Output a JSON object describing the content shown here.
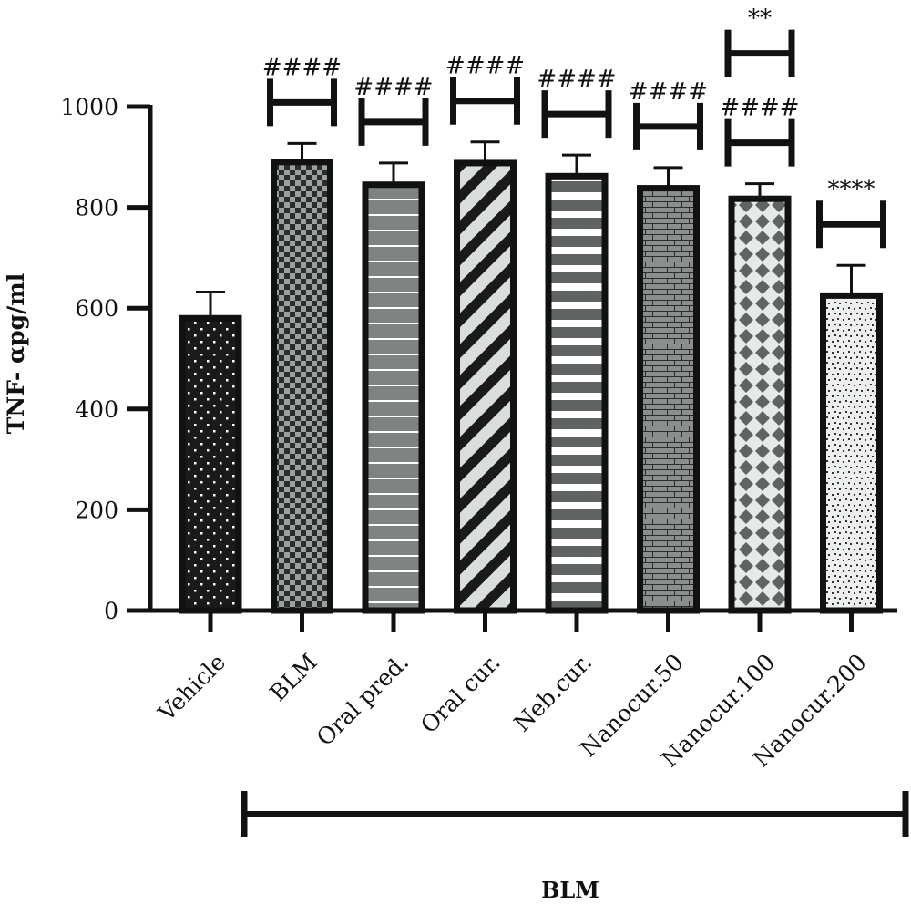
{
  "chart_data": {
    "type": "bar",
    "title": "",
    "xlabel": "",
    "ylabel": "TNF- αpg/ml",
    "ylim": [
      0,
      1000
    ],
    "yticks": [
      "0",
      "200",
      "400",
      "600",
      "800",
      "1000"
    ],
    "grid": false,
    "categories": [
      "Vehicle",
      "BLM",
      "Oral pred.",
      "Oral cur.",
      "Neb.cur.",
      "Nanocur.50",
      "Nanocur.100",
      "Nanocur.200"
    ],
    "values": [
      580,
      890,
      845,
      888,
      862,
      838,
      817,
      625
    ],
    "errors": [
      52,
      37,
      43,
      42,
      42,
      41,
      30,
      60
    ],
    "patterns": [
      "dots-dark",
      "checker",
      "hstripe-light",
      "diagonal",
      "hstripe-dark",
      "brick",
      "diamond",
      "speckle"
    ],
    "significance": [
      {
        "category": "BLM",
        "label": "####"
      },
      {
        "category": "Oral pred.",
        "label": "####"
      },
      {
        "category": "Oral cur.",
        "label": "####"
      },
      {
        "category": "Neb.cur.",
        "label": "####"
      },
      {
        "category": "Nanocur.50",
        "label": "####"
      },
      {
        "category": "Nanocur.100",
        "label": "####"
      },
      {
        "category": "Nanocur.100",
        "label": "**"
      },
      {
        "category": "Nanocur.200",
        "label": "****"
      }
    ],
    "group_label": "BLM"
  },
  "colors": {
    "bar_outline": "#111111",
    "dark_fill": "#1a1a1a",
    "mid_grey": "#7f8482",
    "dark_grey": "#5f6361",
    "light_grey": "#d9dddb"
  }
}
